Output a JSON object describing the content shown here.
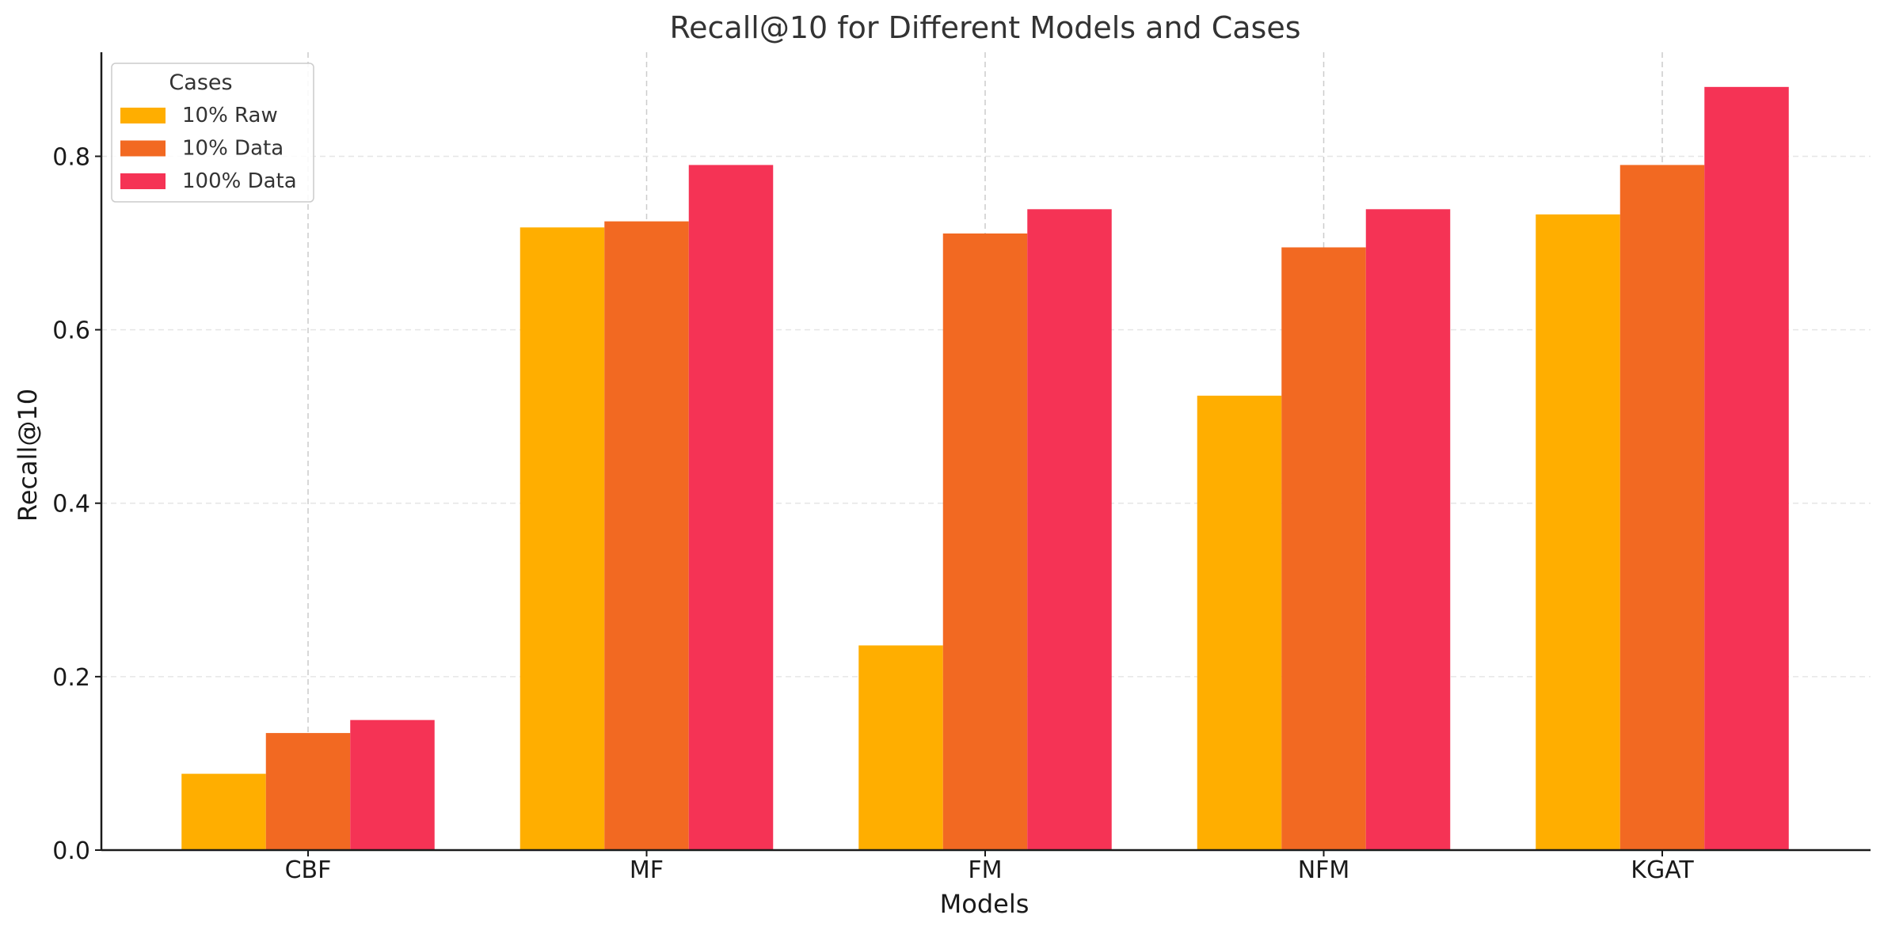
{
  "chart_data": {
    "type": "bar",
    "title": "Recall@10 for Different Models and Cases",
    "xlabel": "Models",
    "ylabel": "Recall@10",
    "categories": [
      "CBF",
      "MF",
      "FM",
      "NFM",
      "KGAT"
    ],
    "series": [
      {
        "name": "10% Raw",
        "color": "#FFAE00",
        "values": [
          0.088,
          0.718,
          0.236,
          0.524,
          0.733
        ]
      },
      {
        "name": "10% Data",
        "color": "#F26922",
        "values": [
          0.135,
          0.725,
          0.711,
          0.695,
          0.79
        ]
      },
      {
        "name": "100% Data",
        "color": "#F53355",
        "values": [
          0.15,
          0.79,
          0.739,
          0.739,
          0.88
        ]
      }
    ],
    "ylim": [
      0,
      0.92
    ],
    "yticks": [
      0.0,
      0.2,
      0.4,
      0.6,
      0.8
    ],
    "ytick_labels": [
      "0.0",
      "0.2",
      "0.4",
      "0.6",
      "0.8"
    ],
    "grid": true,
    "legend": {
      "title": "Cases",
      "placement": "top-left"
    }
  }
}
